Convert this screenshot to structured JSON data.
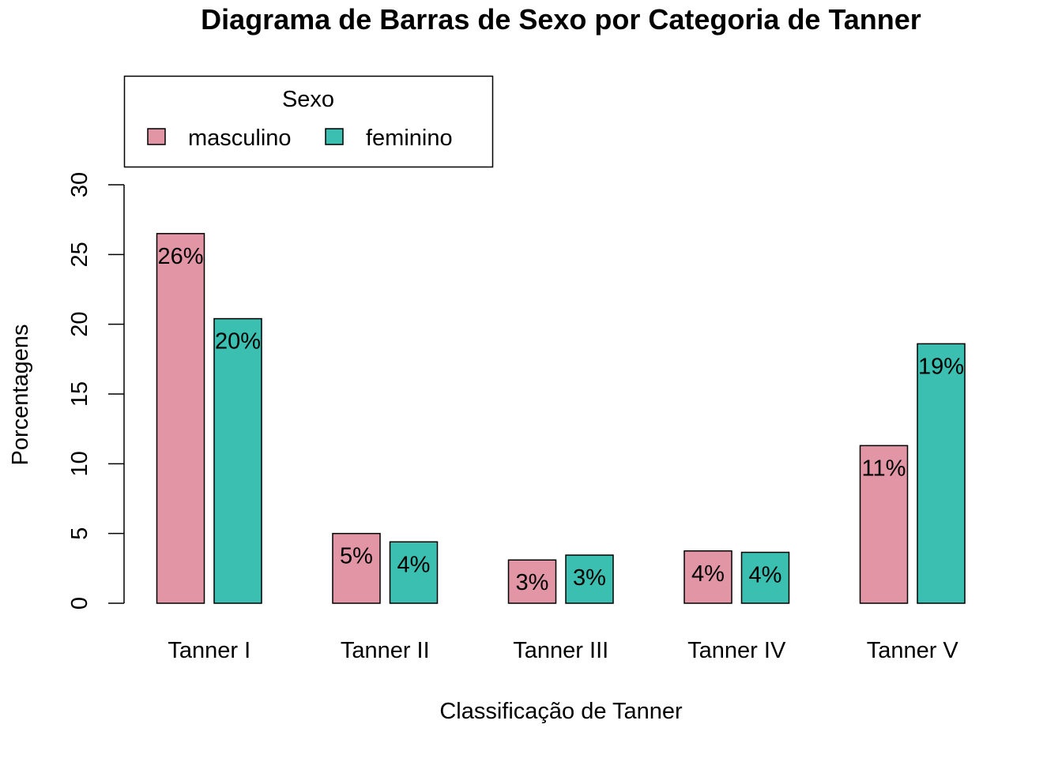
{
  "chart_data": {
    "type": "bar",
    "title": "Diagrama de Barras de Sexo por Categoria de Tanner",
    "xlabel": "Classificação de Tanner",
    "ylabel": "Porcentagens",
    "categories": [
      "Tanner I",
      "Tanner II",
      "Tanner III",
      "Tanner IV",
      "Tanner V"
    ],
    "series": [
      {
        "name": "masculino",
        "color": "#e295a5",
        "values": [
          26.5,
          5.0,
          3.1,
          3.75,
          11.3
        ],
        "labels": [
          "26%",
          "5%",
          "3%",
          "4%",
          "11%"
        ]
      },
      {
        "name": "feminino",
        "color": "#3bbfb0",
        "values": [
          20.4,
          4.4,
          3.45,
          3.65,
          18.6
        ],
        "labels": [
          "20%",
          "4%",
          "3%",
          "4%",
          "19%"
        ]
      }
    ],
    "yticks": [
      "0",
      "5",
      "10",
      "15",
      "20",
      "25",
      "30"
    ],
    "ylim": [
      0,
      30
    ],
    "legend": {
      "title": "Sexo",
      "placement": "top-left"
    },
    "grid": false
  }
}
